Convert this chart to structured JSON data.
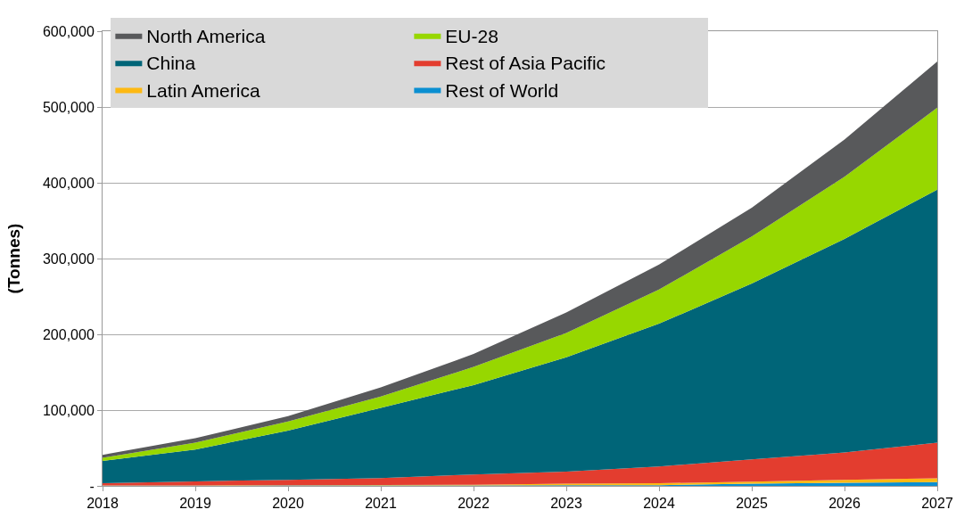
{
  "chart_data": {
    "type": "area",
    "stacked": true,
    "ylabel": "(Tonnes)",
    "x": [
      2018,
      2019,
      2020,
      2021,
      2022,
      2023,
      2024,
      2025,
      2026,
      2027
    ],
    "series": [
      {
        "name": "Rest of World",
        "color": "#0a8fd1",
        "values": [
          300,
          400,
          500,
          600,
          700,
          800,
          1000,
          3000,
          4000,
          5000
        ]
      },
      {
        "name": "Latin America",
        "color": "#fdb913",
        "values": [
          200,
          300,
          400,
          500,
          800,
          2000,
          2500,
          2500,
          4000,
          5000
        ]
      },
      {
        "name": "Rest of Asia Pacific",
        "color": "#e33d2f",
        "values": [
          3000,
          5300,
          7100,
          9300,
          13500,
          16000,
          22100,
          29500,
          36000,
          47000
        ]
      },
      {
        "name": "China",
        "color": "#006578",
        "values": [
          29500,
          42000,
          65000,
          92500,
          118000,
          151000,
          188400,
          232000,
          282000,
          334000
        ]
      },
      {
        "name": "EU-28",
        "color": "#97d700",
        "values": [
          4000,
          9000,
          12000,
          15000,
          24000,
          32000,
          45000,
          62000,
          82000,
          108000
        ]
      },
      {
        "name": "North America",
        "color": "#58595b",
        "values": [
          4000,
          6000,
          7000,
          12000,
          17000,
          27000,
          33000,
          38000,
          49000,
          61000
        ]
      }
    ],
    "xlim": [
      2018,
      2027
    ],
    "xticks": [
      2018,
      2019,
      2020,
      2021,
      2022,
      2023,
      2024,
      2025,
      2026,
      2027
    ],
    "ylim": [
      0,
      600000
    ],
    "yticks": [
      {
        "value": 0,
        "label": "-"
      },
      {
        "value": 100000,
        "label": "100,000"
      },
      {
        "value": 200000,
        "label": "200,000"
      },
      {
        "value": 300000,
        "label": "300,000"
      },
      {
        "value": 400000,
        "label": "400,000"
      },
      {
        "value": 500000,
        "label": "500,000"
      },
      {
        "value": 600000,
        "label": "600,000"
      }
    ],
    "grid": "y",
    "legend": "top left"
  }
}
